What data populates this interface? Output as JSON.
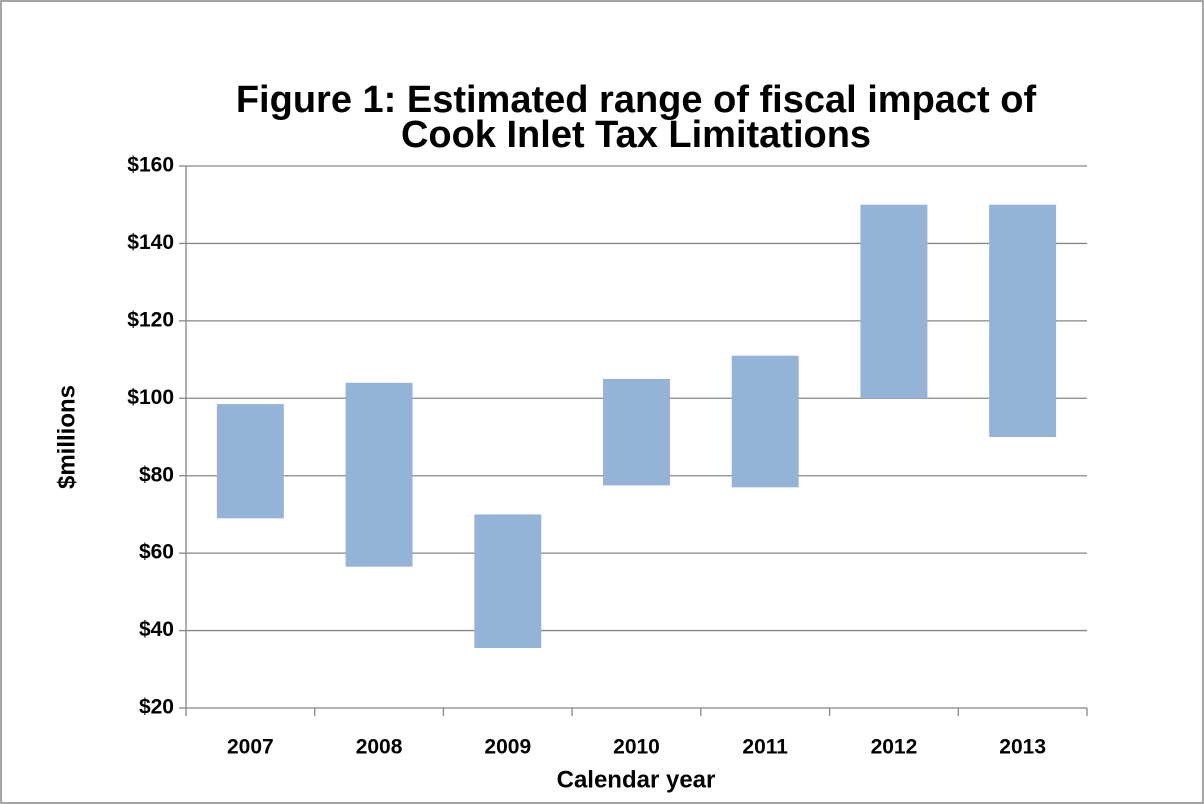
{
  "chart_data": {
    "type": "range_bar",
    "title": [
      "Figure 1: Estimated range of fiscal impact of",
      "Cook Inlet Tax Limitations"
    ],
    "x_label": "Calendar year",
    "y_label": "$millions",
    "categories": [
      "2007",
      "2008",
      "2009",
      "2010",
      "2011",
      "2012",
      "2013"
    ],
    "low": [
      69,
      56.5,
      35.5,
      77.5,
      77,
      100,
      90
    ],
    "high": [
      98.5,
      104,
      70,
      105,
      111,
      150,
      150
    ],
    "color": "#95b3d7",
    "ylim": [
      20,
      160
    ],
    "yticks": [
      {
        "value": 20,
        "label": "$20"
      },
      {
        "value": 40,
        "label": "$40"
      },
      {
        "value": 60,
        "label": "$60"
      },
      {
        "value": 80,
        "label": "$80"
      },
      {
        "value": 100,
        "label": "$100"
      },
      {
        "value": 120,
        "label": "$120"
      },
      {
        "value": 140,
        "label": "$140"
      },
      {
        "value": 160,
        "label": "$160"
      }
    ],
    "grid": true
  }
}
